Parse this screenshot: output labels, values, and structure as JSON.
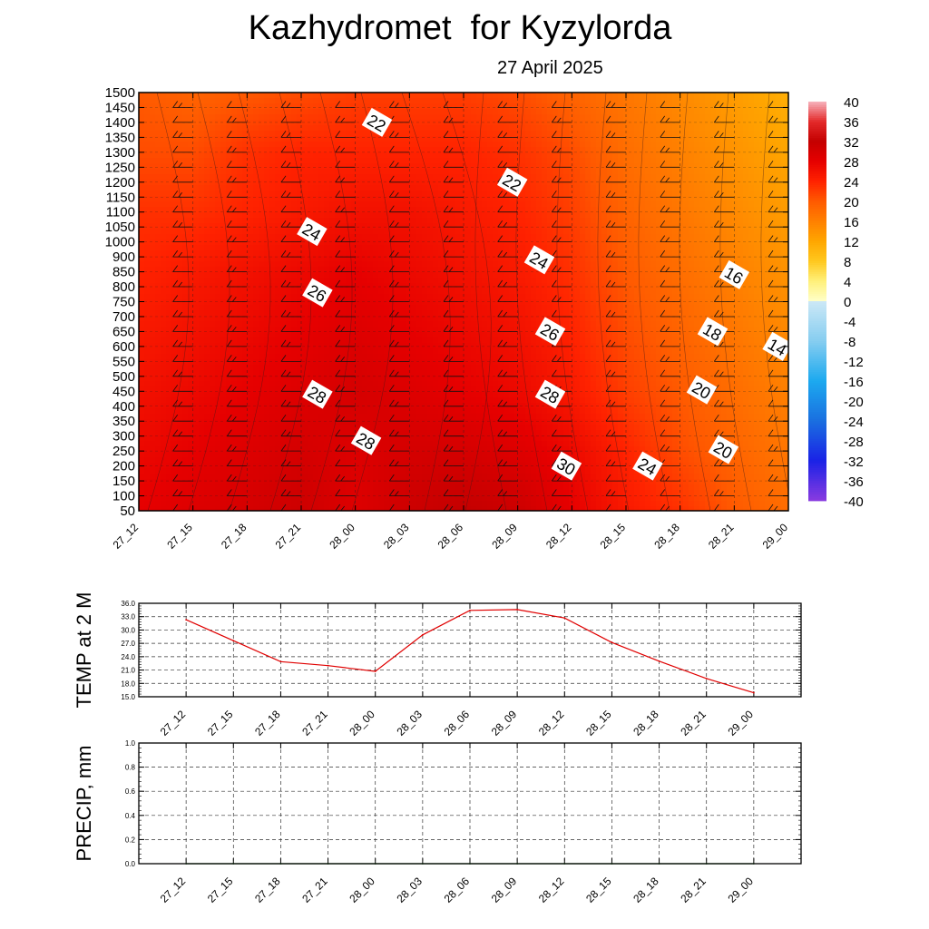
{
  "title": "Kazhydromet  for Kyzylorda",
  "subtitle": "27 April 2025",
  "time_labels": [
    "27_12",
    "27_15",
    "27_18",
    "27_21",
    "28_00",
    "28_03",
    "28_06",
    "28_09",
    "28_12",
    "28_15",
    "28_18",
    "28_21",
    "29_00"
  ],
  "chart_data": [
    {
      "type": "heatmap",
      "title": "Kazhydromet  for Kyzylorda",
      "subtitle": "27 April 2025",
      "x": [
        "27_12",
        "27_15",
        "27_18",
        "27_21",
        "28_00",
        "28_03",
        "28_06",
        "28_09",
        "28_12",
        "28_15",
        "28_18",
        "28_21",
        "29_00"
      ],
      "y_levels": [
        1500,
        1450,
        1400,
        1350,
        1300,
        1250,
        1200,
        1150,
        1100,
        1050,
        1000,
        900,
        850,
        800,
        750,
        700,
        650,
        600,
        550,
        500,
        450,
        400,
        350,
        300,
        250,
        200,
        150,
        100,
        50
      ],
      "colorbar": {
        "ticks": [
          40,
          36,
          32,
          28,
          24,
          20,
          16,
          12,
          8,
          4,
          0,
          -4,
          -8,
          -12,
          -16,
          -20,
          -24,
          -28,
          -32,
          -36,
          -40
        ],
        "stops": [
          {
            "v": 40,
            "c": "#f7b3bd"
          },
          {
            "v": 36,
            "c": "#e32a2a"
          },
          {
            "v": 32,
            "c": "#c40000"
          },
          {
            "v": 28,
            "c": "#e60000"
          },
          {
            "v": 24,
            "c": "#ff2200"
          },
          {
            "v": 20,
            "c": "#ff5a00"
          },
          {
            "v": 16,
            "c": "#ff8000"
          },
          {
            "v": 12,
            "c": "#ffa600"
          },
          {
            "v": 8,
            "c": "#ffc81e"
          },
          {
            "v": 4,
            "c": "#fff07a"
          },
          {
            "v": 0.01,
            "c": "#ffffc8"
          },
          {
            "v": -0.01,
            "c": "#cce8f6"
          },
          {
            "v": -8,
            "c": "#86cdf0"
          },
          {
            "v": -16,
            "c": "#1ca9ef"
          },
          {
            "v": -24,
            "c": "#1a6fe0"
          },
          {
            "v": -32,
            "c": "#1a22e6"
          },
          {
            "v": -40,
            "c": "#8a3be0"
          }
        ]
      },
      "temperature_grid": [
        [
          20,
          19,
          20,
          21,
          22,
          22,
          22,
          21,
          19,
          17,
          15,
          13,
          11
        ],
        [
          21,
          21,
          23,
          24,
          24,
          24,
          24,
          23,
          21,
          18,
          16,
          14,
          12
        ],
        [
          23,
          23,
          24,
          25,
          26,
          26,
          25,
          24,
          22,
          19,
          17,
          15,
          13
        ],
        [
          24,
          25,
          26,
          27,
          28,
          27,
          26,
          25,
          23,
          20,
          18,
          16,
          14
        ],
        [
          25,
          26,
          27,
          28,
          29,
          28,
          27,
          26,
          24,
          21,
          19,
          17,
          15
        ],
        [
          26,
          27,
          28,
          29,
          30,
          29,
          28,
          27,
          25,
          22,
          20,
          18,
          16
        ],
        [
          27,
          28,
          29,
          30,
          29,
          30,
          30,
          29,
          27,
          24,
          21,
          19,
          17
        ],
        [
          28,
          29,
          30,
          31,
          29,
          31,
          32,
          31,
          28,
          25,
          23,
          20,
          18
        ]
      ],
      "contour_labels": [
        {
          "text": "22",
          "x": 4.4,
          "y": 1400
        },
        {
          "text": "22",
          "x": 6.9,
          "y": 1200
        },
        {
          "text": "24",
          "x": 3.2,
          "y": 1035
        },
        {
          "text": "24",
          "x": 7.4,
          "y": 890
        },
        {
          "text": "26",
          "x": 3.3,
          "y": 780
        },
        {
          "text": "26",
          "x": 7.6,
          "y": 650
        },
        {
          "text": "28",
          "x": 3.3,
          "y": 440
        },
        {
          "text": "28",
          "x": 7.6,
          "y": 440
        },
        {
          "text": "28",
          "x": 4.2,
          "y": 285
        },
        {
          "text": "30",
          "x": 7.9,
          "y": 200
        },
        {
          "text": "24",
          "x": 9.4,
          "y": 200
        },
        {
          "text": "20",
          "x": 10.8,
          "y": 255
        },
        {
          "text": "20",
          "x": 10.4,
          "y": 455
        },
        {
          "text": "18",
          "x": 10.6,
          "y": 650
        },
        {
          "text": "16",
          "x": 11.0,
          "y": 840
        },
        {
          "text": "14",
          "x": 11.8,
          "y": 600
        }
      ]
    },
    {
      "type": "line",
      "ylabel": "TEMP at 2 M",
      "x": [
        "27_12",
        "27_15",
        "27_18",
        "27_21",
        "28_00",
        "28_03",
        "28_06",
        "28_09",
        "28_12",
        "28_15",
        "28_18",
        "28_21",
        "29_00"
      ],
      "ylim": [
        15,
        36
      ],
      "yticks": [
        "15.0",
        "18.0",
        "21.0",
        "24.0",
        "27.0",
        "30.0",
        "33.0",
        "36.0"
      ],
      "series": [
        {
          "values": [
            32.3,
            27.6,
            22.9,
            22.0,
            20.7,
            28.9,
            34.4,
            34.6,
            32.7,
            27.2,
            23.0,
            19.1,
            15.9
          ],
          "color": "#e00000"
        }
      ]
    },
    {
      "type": "line",
      "ylabel": "PRECIP, mm",
      "x": [
        "27_12",
        "27_15",
        "27_18",
        "27_21",
        "28_00",
        "28_03",
        "28_06",
        "28_09",
        "28_12",
        "28_15",
        "28_18",
        "28_21",
        "29_00"
      ],
      "ylim": [
        0,
        1
      ],
      "yticks": [
        "0.0",
        "0.2",
        "0.4",
        "0.6",
        "0.8",
        "1.0"
      ],
      "series": [
        {
          "values": [
            0,
            0,
            0,
            0,
            0,
            0,
            0,
            0,
            0,
            0,
            0,
            0,
            0
          ],
          "color": "#1f7a1f"
        }
      ]
    }
  ]
}
